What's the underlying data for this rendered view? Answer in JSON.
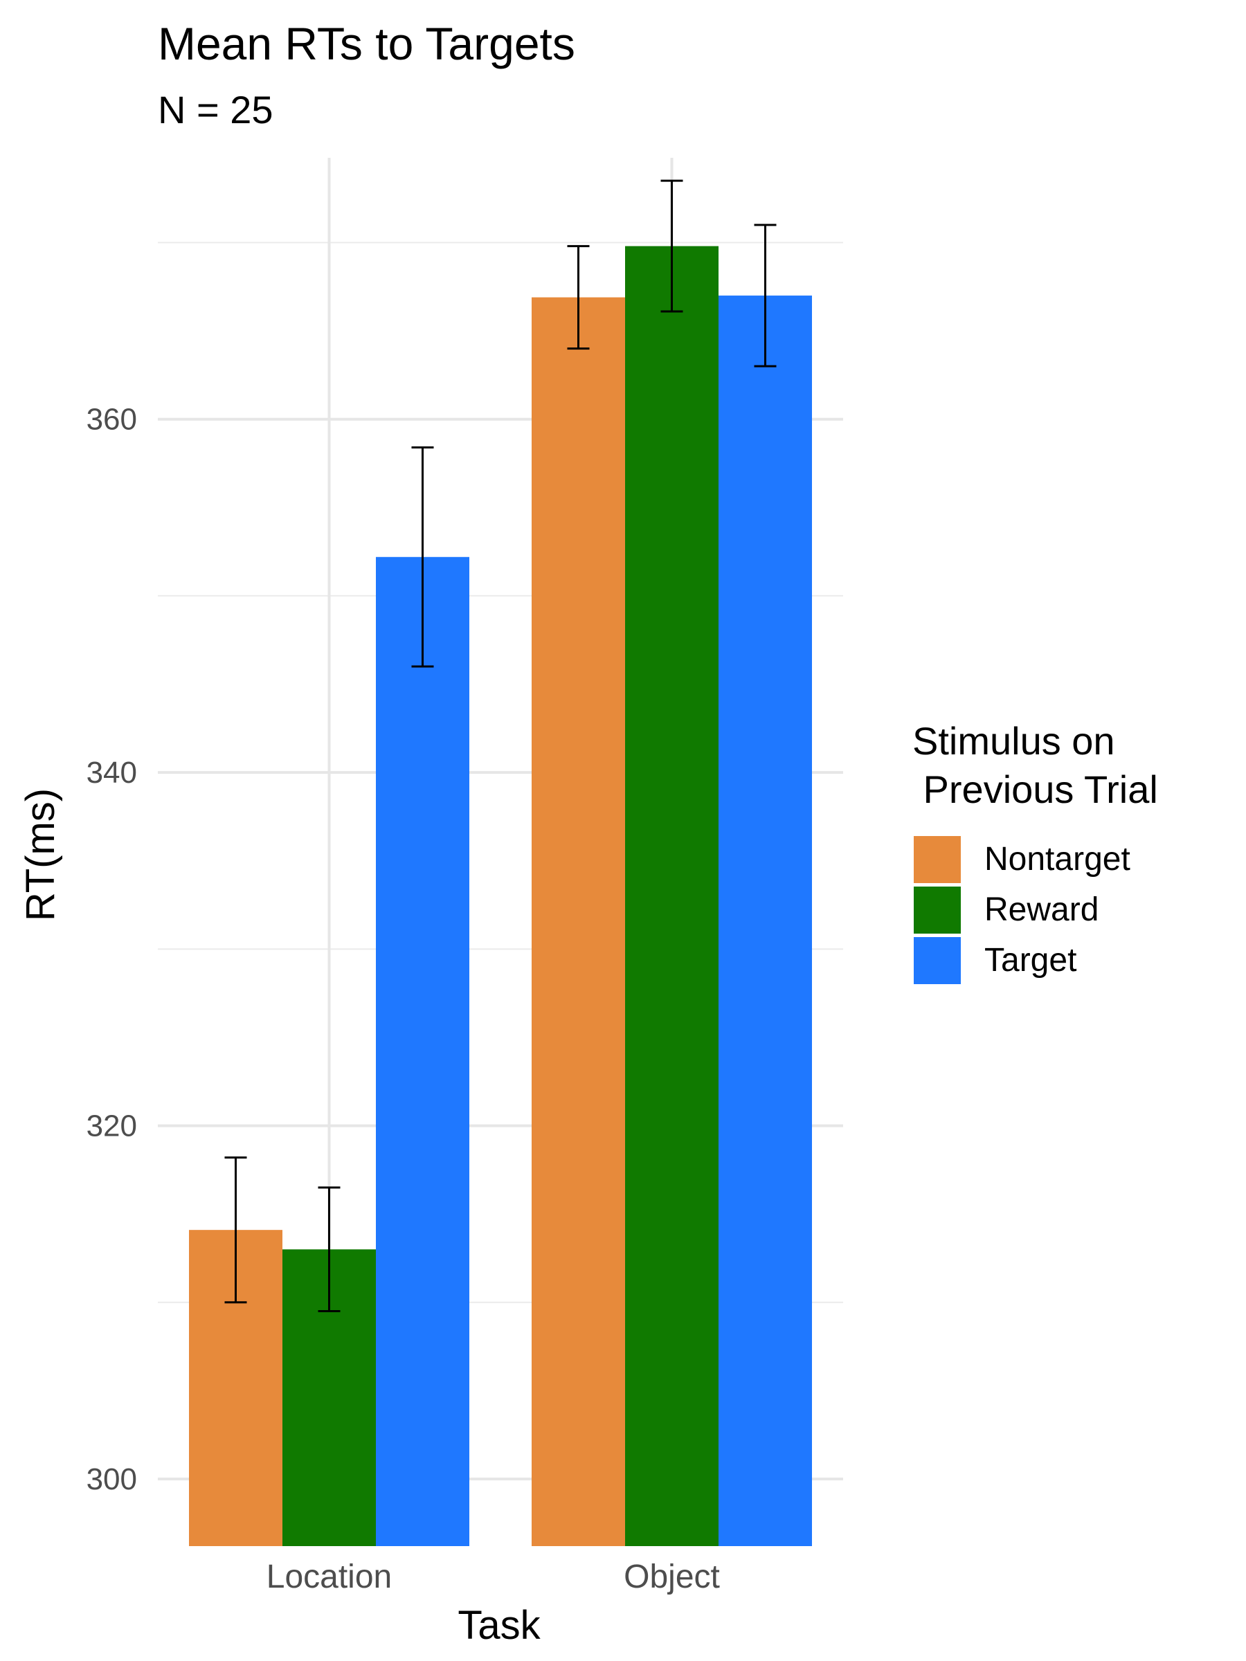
{
  "chart_data": {
    "type": "bar",
    "title": "Mean RTs to Targets",
    "subtitle": "N = 25",
    "xlabel": "Task",
    "ylabel": "RT(ms)",
    "categories": [
      "Location",
      "Object"
    ],
    "series": [
      {
        "name": "Nontarget",
        "color": "#E78A3B",
        "values": [
          314.1,
          366.9
        ],
        "errors": [
          4.1,
          2.9
        ]
      },
      {
        "name": "Reward",
        "color": "#107A00",
        "values": [
          313.0,
          369.8
        ],
        "errors": [
          3.5,
          3.7
        ]
      },
      {
        "name": "Target",
        "color": "#1F78FF",
        "values": [
          352.2,
          367.0
        ],
        "errors": [
          6.2,
          4.0
        ]
      }
    ],
    "yticks": [
      300,
      320,
      340,
      360
    ],
    "ylim": [
      296.2,
      374.8
    ],
    "legend": {
      "title": "Stimulus on\n Previous Trial",
      "position": "right"
    },
    "grid": true,
    "error_bars": true
  }
}
